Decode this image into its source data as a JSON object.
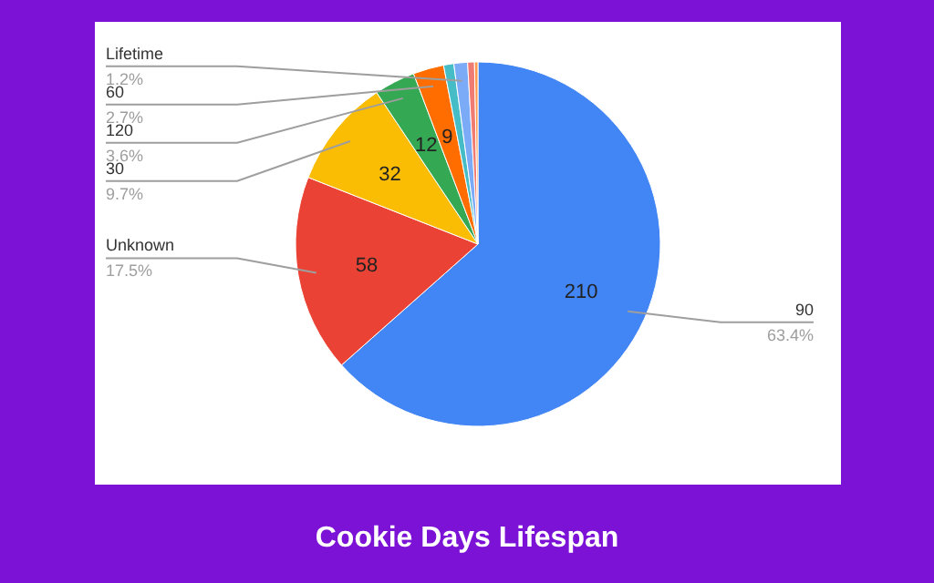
{
  "chart_data": {
    "type": "pie",
    "title": "Cookie Days Lifespan",
    "categories": [
      "90",
      "Unknown",
      "30",
      "120",
      "60",
      null,
      "Lifetime",
      null,
      null
    ],
    "values": [
      210,
      58,
      32,
      12,
      9,
      3,
      4,
      2,
      1
    ],
    "colors": [
      "#4285f4",
      "#ea4335",
      "#fbbc04",
      "#34a853",
      "#ff6d01",
      "#46bdc6",
      "#7baaf7",
      "#f07b72",
      "#ff994d"
    ],
    "value_labels": [
      "210",
      "58",
      "32",
      "12",
      "9",
      null,
      null,
      null,
      null
    ],
    "annotations": [
      "63.4%",
      "17.5%",
      "9.7%",
      "3.6%",
      "2.7%",
      "1.2%"
    ]
  }
}
